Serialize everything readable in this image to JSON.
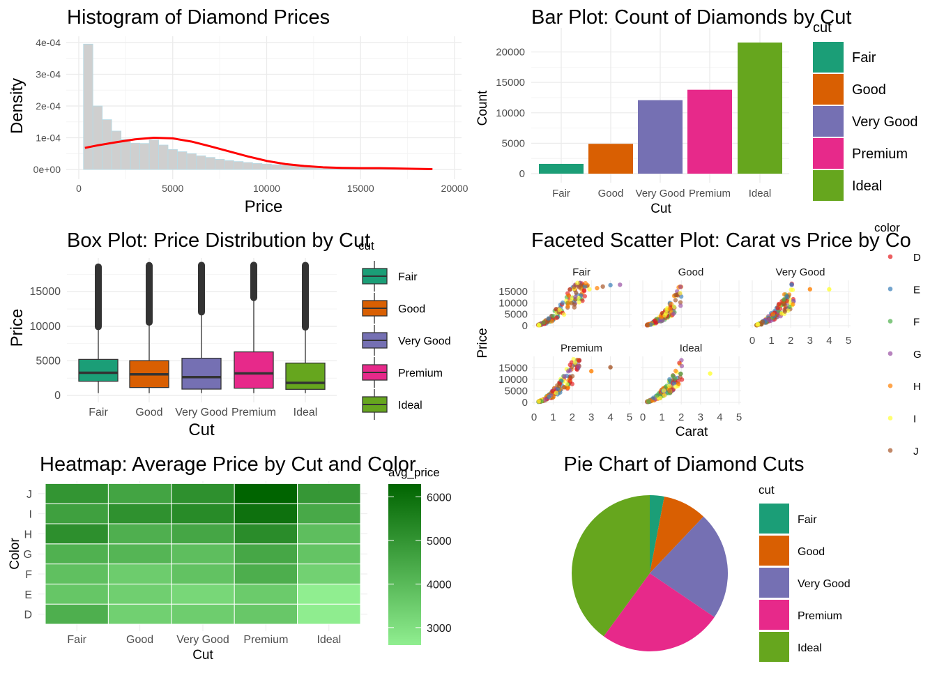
{
  "chart_data": [
    {
      "type": "histogram",
      "title": "Histogram of Diamond Prices",
      "xlabel": "Price",
      "ylabel": "Density",
      "xlim": [
        0,
        20000
      ],
      "ylim": [
        0,
        0.0004
      ],
      "x_ticks": [
        0,
        5000,
        10000,
        15000,
        20000
      ],
      "y_ticks": [
        0,
        0.0001,
        0.0002,
        0.0003,
        0.0004
      ],
      "y_tick_labels": [
        "0e+00",
        "1e-04",
        "2e-04",
        "3e-04",
        "4e-04"
      ],
      "bin_width": 500,
      "bin_start": 250,
      "values": [
        0.000395,
        0.0002,
        0.000157,
        0.000121,
        9.5e-05,
        8.3e-05,
        8.2e-05,
        9.3e-05,
        7.7e-05,
        6.3e-05,
        5.6e-05,
        5e-05,
        4.3e-05,
        3.8e-05,
        3.2e-05,
        2.8e-05,
        2.5e-05,
        2.2e-05,
        1.9e-05,
        1.7e-05,
        1.5e-05,
        1.3e-05,
        1.2e-05,
        1e-05,
        9e-06,
        8e-06,
        7e-06,
        6e-06,
        5e-06,
        5e-06,
        4e-06,
        4e-06,
        3e-06,
        3e-06,
        3e-06,
        3e-06,
        2e-06
      ],
      "density_x": [
        326,
        1000,
        2000,
        3000,
        4000,
        5000,
        6000,
        7000,
        8000,
        9000,
        10000,
        11000,
        12000,
        13000,
        14000,
        15000,
        16000,
        17000,
        18000,
        18823
      ],
      "density_y": [
        6.8e-05,
        7.6e-05,
        8.6e-05,
        9.5e-05,
        0.0001,
        9.8e-05,
        8.8e-05,
        7.3e-05,
        5.7e-05,
        4.1e-05,
        2.7e-05,
        1.7e-05,
        1.1e-05,
        7e-06,
        5e-06,
        4e-06,
        4e-06,
        3e-06,
        2e-06,
        1e-06
      ],
      "bar_color": "#cfcfcf",
      "bar_outline": "#b6dbe6",
      "line_color": "#ff0000"
    },
    {
      "type": "bar",
      "title": "Bar Plot: Count of Diamonds by Cut",
      "xlabel": "Cut",
      "ylabel": "Count",
      "categories": [
        "Fair",
        "Good",
        "Very Good",
        "Premium",
        "Ideal"
      ],
      "values": [
        1610,
        4906,
        12082,
        13791,
        21551
      ],
      "ylim": [
        0,
        22000
      ],
      "y_ticks": [
        0,
        5000,
        10000,
        15000,
        20000
      ],
      "legend_title": "cut",
      "legend_position": "right"
    },
    {
      "type": "box",
      "title": "Box Plot: Price Distribution by Cut",
      "xlabel": "Cut",
      "ylabel": "Price",
      "categories": [
        "Fair",
        "Good",
        "Very Good",
        "Premium",
        "Ideal"
      ],
      "boxes": [
        {
          "whisker_low": 337,
          "q1": 2050,
          "median": 3282,
          "q3": 5206,
          "whisker_high": 9937,
          "outliers_from": 9937,
          "outliers_to": 18574
        },
        {
          "whisker_low": 327,
          "q1": 1145,
          "median": 3051,
          "q3": 5028,
          "whisker_high": 10580,
          "outliers_from": 10580,
          "outliers_to": 18788
        },
        {
          "whisker_low": 336,
          "q1": 912,
          "median": 2648,
          "q3": 5373,
          "whisker_high": 12055,
          "outliers_from": 12055,
          "outliers_to": 18818
        },
        {
          "whisker_low": 326,
          "q1": 1046,
          "median": 3185,
          "q3": 6296,
          "whisker_high": 14138,
          "outliers_from": 14138,
          "outliers_to": 18823
        },
        {
          "whisker_low": 326,
          "q1": 878,
          "median": 1810,
          "q3": 4678,
          "whisker_high": 9873,
          "outliers_from": 9873,
          "outliers_to": 18806
        }
      ],
      "ylim": [
        -600,
        19500
      ],
      "y_ticks": [
        0,
        5000,
        10000,
        15000
      ],
      "legend_title": "cut",
      "legend_position": "right"
    },
    {
      "type": "scatter",
      "title": "Faceted Scatter Plot: Carat vs Price by Co",
      "xlabel": "Carat",
      "ylabel": "Price",
      "facets": [
        "Fair",
        "Good",
        "Very Good",
        "Premium",
        "Ideal"
      ],
      "xlim": [
        0,
        5
      ],
      "ylim": [
        0,
        19000
      ],
      "x_ticks": [
        0,
        1,
        2,
        3,
        4,
        5
      ],
      "y_ticks": [
        0,
        5000,
        10000,
        15000
      ],
      "legend_title": "color",
      "legend_items": [
        "D",
        "E",
        "F",
        "G",
        "H",
        "I",
        "J"
      ],
      "legend_position": "right"
    },
    {
      "type": "heatmap",
      "title": "Heatmap: Average Price by Cut and Color",
      "xlabel": "Cut",
      "ylabel": "Color",
      "x_categories": [
        "Fair",
        "Good",
        "Very Good",
        "Premium",
        "Ideal"
      ],
      "y_categories": [
        "D",
        "E",
        "F",
        "G",
        "H",
        "I",
        "J"
      ],
      "values": [
        [
          4291,
          3405,
          3470,
          3631,
          2629
        ],
        [
          3682,
          3424,
          3215,
          3539,
          2598
        ],
        [
          3827,
          3496,
          3779,
          4325,
          3375
        ],
        [
          4239,
          4123,
          3873,
          4501,
          3721
        ],
        [
          5136,
          4276,
          4535,
          5217,
          3889
        ],
        [
          4685,
          5079,
          5256,
          5946,
          4452
        ],
        [
          4976,
          4574,
          5104,
          6295,
          4918
        ]
      ],
      "legend_title": "avg_price",
      "legend_ticks": [
        3000,
        4000,
        5000,
        6000
      ],
      "color_low": "#90ee90",
      "color_high": "#006400",
      "value_range": [
        2598,
        6295
      ]
    },
    {
      "type": "pie",
      "title": "Pie Chart of Diamond Cuts",
      "categories": [
        "Fair",
        "Good",
        "Very Good",
        "Premium",
        "Ideal"
      ],
      "values": [
        1610,
        4906,
        12082,
        13791,
        21551
      ],
      "legend_title": "cut",
      "legend_position": "right"
    }
  ],
  "palette": {
    "Fair": "#1b9e77",
    "Good": "#d95f02",
    "Very Good": "#7570b3",
    "Premium": "#e7298a",
    "Ideal": "#66a61e"
  },
  "color_palette": {
    "D": "#e41a1c",
    "E": "#377eb8",
    "F": "#4daf4a",
    "G": "#984ea3",
    "H": "#ff7f00",
    "I": "#ffff33",
    "J": "#a65628"
  }
}
